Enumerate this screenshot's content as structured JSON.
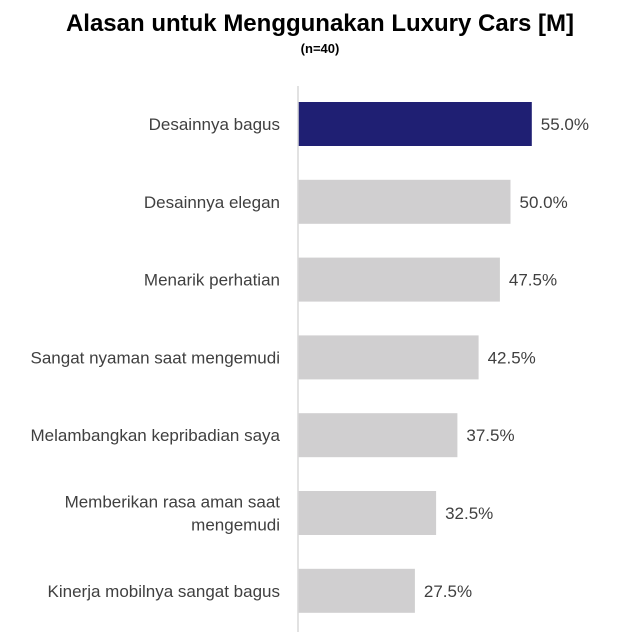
{
  "chart_data": {
    "type": "bar",
    "orientation": "horizontal",
    "title": "Alasan untuk Menggunakan Luxury Cars [M]",
    "subtitle": "(n=40)",
    "categories": [
      "Desainnya bagus",
      "Desainnya elegan",
      "Menarik perhatian",
      "Sangat nyaman saat mengemudi",
      "Melambangkan kepribadian saya",
      "Memberikan rasa aman saat mengemudi",
      "Kinerja mobilnya sangat bagus"
    ],
    "values": [
      55.0,
      50.0,
      47.5,
      42.5,
      37.5,
      32.5,
      27.5
    ],
    "value_labels": [
      "55.0%",
      "50.0%",
      "47.5%",
      "42.5%",
      "37.5%",
      "32.5%",
      "27.5%"
    ],
    "xlim": [
      0,
      100
    ],
    "grid": false,
    "legend": "none",
    "colors": {
      "highlight": "#1f1f73",
      "default": "#d0cfd0",
      "axis": "#d9d9d9",
      "text": "#404040"
    }
  }
}
